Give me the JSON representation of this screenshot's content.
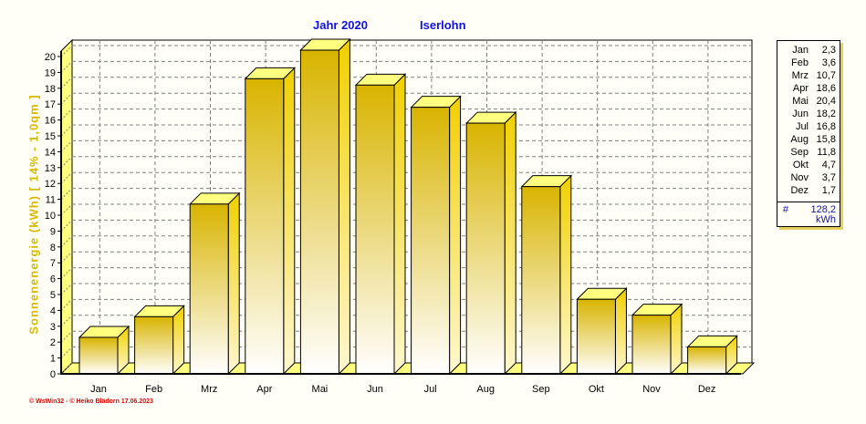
{
  "title": {
    "year_label": "Jahr  2020",
    "location": "Iserlohn"
  },
  "chart_data": {
    "type": "bar",
    "title": "Jahr 2020 Iserlohn",
    "xlabel": "",
    "ylabel": "Sonnenenergie  (kWh)    [ 14% - 1,0qm ]",
    "categories": [
      "Jan",
      "Feb",
      "Mrz",
      "Apr",
      "Mai",
      "Jun",
      "Jul",
      "Aug",
      "Sep",
      "Okt",
      "Nov",
      "Dez"
    ],
    "values": [
      2.3,
      3.6,
      10.7,
      18.6,
      20.4,
      18.2,
      16.8,
      15.8,
      11.8,
      4.7,
      3.7,
      1.7
    ],
    "ylim": [
      0,
      20
    ],
    "yticks": [
      0,
      1,
      2,
      3,
      4,
      5,
      6,
      7,
      8,
      9,
      10,
      11,
      12,
      13,
      14,
      15,
      16,
      17,
      18,
      19,
      20
    ],
    "grid": true,
    "legend_position": "right"
  },
  "legend": {
    "rows": [
      {
        "m": "Jan",
        "v": "2,3"
      },
      {
        "m": "Feb",
        "v": "3,6"
      },
      {
        "m": "Mrz",
        "v": "10,7"
      },
      {
        "m": "Apr",
        "v": "18,6"
      },
      {
        "m": "Mai",
        "v": "20,4"
      },
      {
        "m": "Jun",
        "v": "18,2"
      },
      {
        "m": "Jul",
        "v": "16,8"
      },
      {
        "m": "Aug",
        "v": "15,8"
      },
      {
        "m": "Sep",
        "v": "11,8"
      },
      {
        "m": "Okt",
        "v": "4,7"
      },
      {
        "m": "Nov",
        "v": "3,7"
      },
      {
        "m": "Dez",
        "v": "1,7"
      }
    ],
    "sum_symbol": "#",
    "sum_value": "128,2",
    "unit": "kWh"
  },
  "credit": "© WsWin32  -  © Heiko Blädorn  17.06.2023",
  "colors": {
    "bar_top": "#d8b400",
    "bar_bottom": "#ffffff",
    "wall": "#ffff80",
    "title": "#1010e0",
    "ylabel": "#d8b800"
  }
}
